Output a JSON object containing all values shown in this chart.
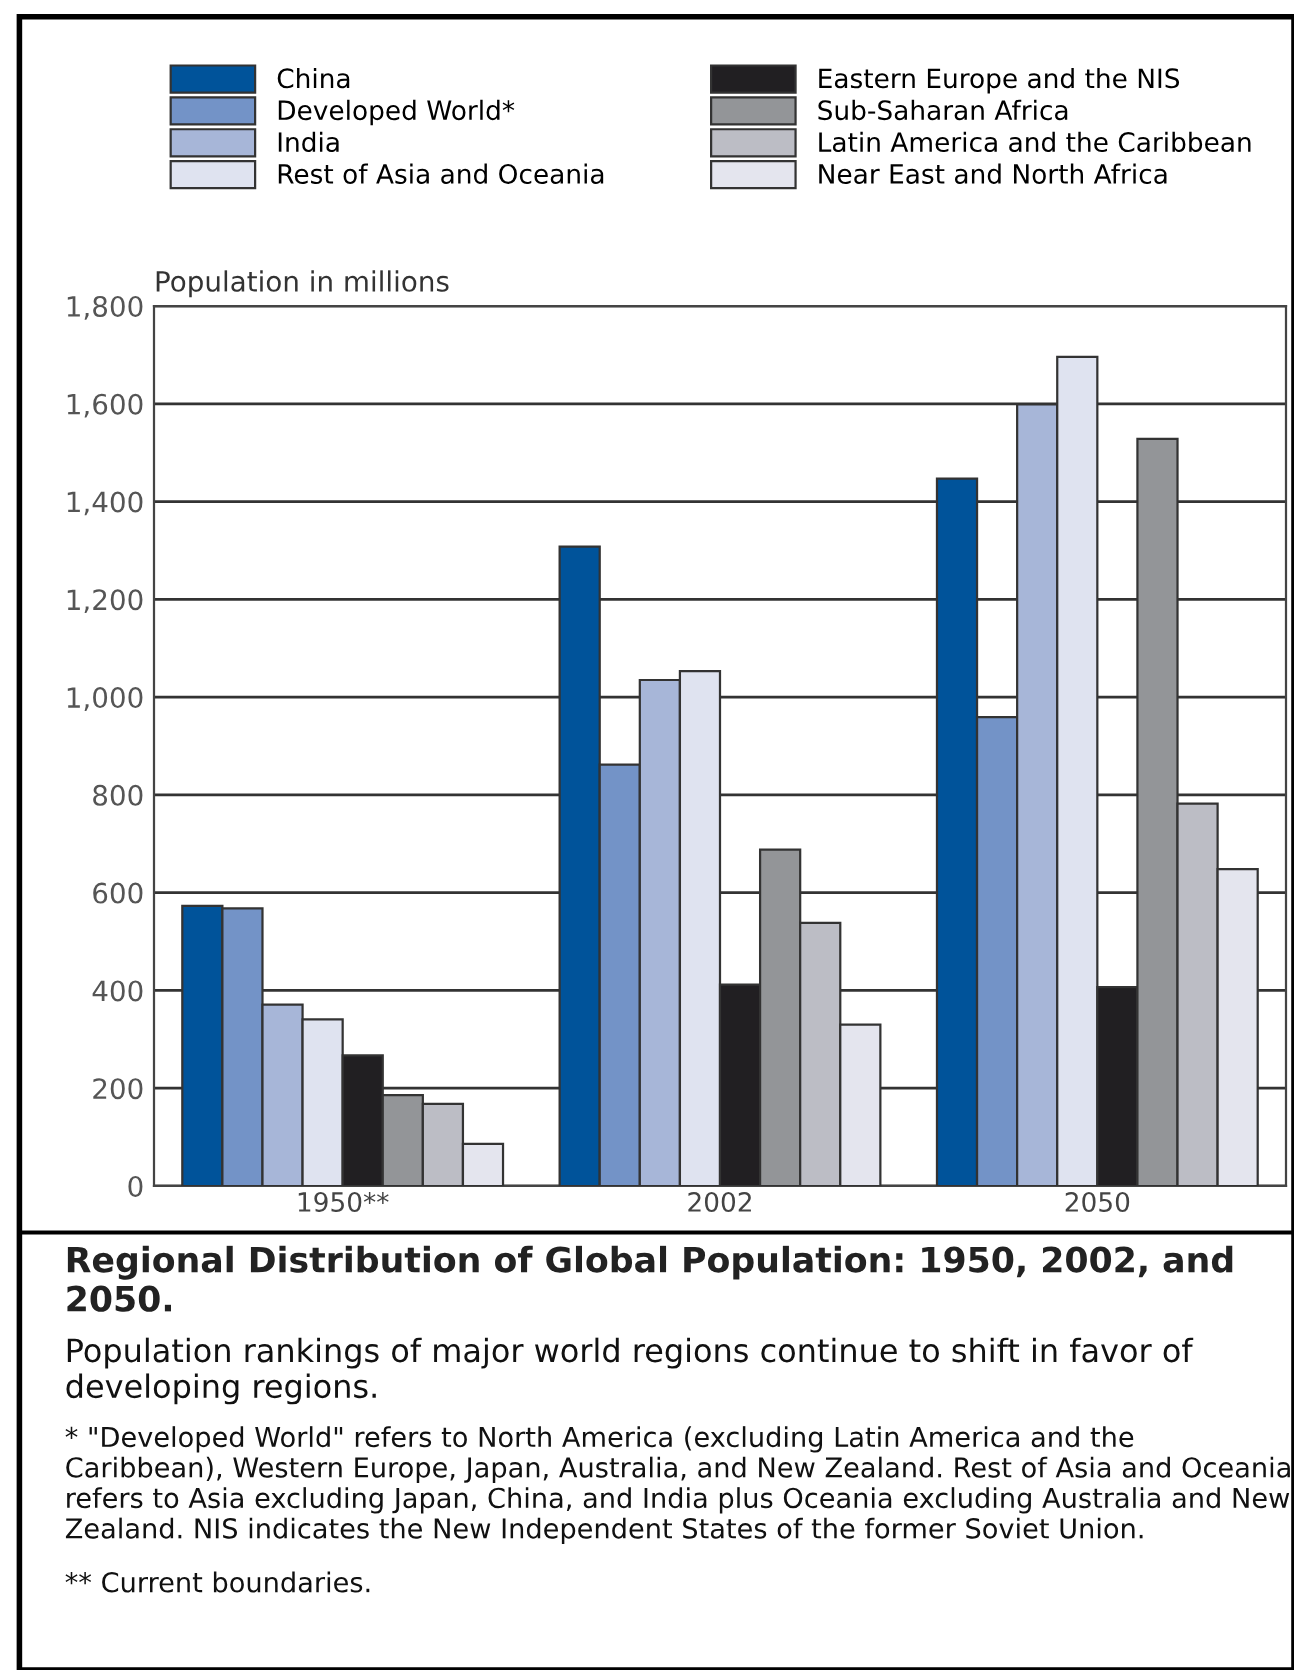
{
  "chart_data": {
    "type": "bar",
    "title": "Regional Distribution of Global Population: 1950, 2002, and 2050.",
    "subtitle": "Population rankings of major world regions continue to shift in favor of developing regions.",
    "ylabel": "Population in millions",
    "categories": [
      "1950**",
      "2002",
      "2050"
    ],
    "series": [
      {
        "name": "China",
        "color": "#00539a",
        "values": [
          573,
          1308,
          1447
        ]
      },
      {
        "name": "Developed World*",
        "color": "#7393c7",
        "values": [
          568,
          862,
          959
        ]
      },
      {
        "name": "India",
        "color": "#a7b6d8",
        "values": [
          371,
          1035,
          1599
        ]
      },
      {
        "name": "Rest of Asia and Oceania",
        "color": "#dfe3f0",
        "values": [
          341,
          1053,
          1696
        ]
      },
      {
        "name": "Eastern Europe and the NIS",
        "color": "#211f22",
        "values": [
          267,
          412,
          407
        ]
      },
      {
        "name": "Sub-Saharan Africa",
        "color": "#939598",
        "values": [
          186,
          688,
          1528
        ]
      },
      {
        "name": "Latin America and the Caribbean",
        "color": "#bcbdc5",
        "values": [
          168,
          538,
          782
        ]
      },
      {
        "name": "Near East and North Africa",
        "color": "#e4e5ee",
        "values": [
          86,
          330,
          648
        ]
      }
    ],
    "ylim": [
      0,
      1800
    ],
    "yticks": [
      0,
      200,
      400,
      600,
      800,
      {
        "value": 1000,
        "label": "1,000"
      },
      {
        "value": 1200,
        "label": "1,200"
      },
      {
        "value": 1400,
        "label": "1,400"
      },
      {
        "value": 1600,
        "label": "1,600"
      },
      {
        "value": 1800,
        "label": "1,800"
      }
    ],
    "grid": "y",
    "legend": "top",
    "annotations": [
      "* \"Developed World\" refers to North America (excluding Latin America and the Caribbean), Western Europe, Japan, Australia, and New Zealand. Rest of Asia and Oceania refers to Asia excluding Japan, China, and India plus Oceania excluding Australia and New Zealand. NIS indicates the New Independent States of the former Soviet Union.",
      "** Current boundaries."
    ]
  }
}
